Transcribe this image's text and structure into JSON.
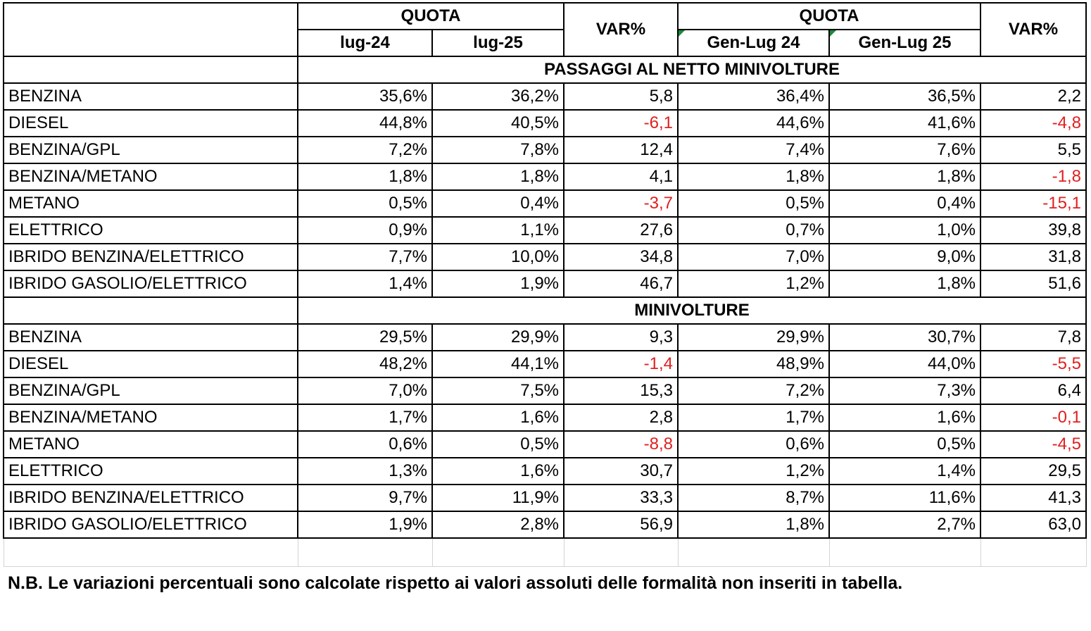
{
  "header": {
    "quota_left": "QUOTA",
    "quota_right": "QUOTA",
    "var_left": "VAR%",
    "var_right": "VAR%",
    "col_lug24": "lug-24",
    "col_lug25": "lug-25",
    "col_gen24": "Gen-Lug 24",
    "col_gen25": "Gen-Lug 25"
  },
  "sections": [
    {
      "title": "PASSAGGI AL NETTO MINIVOLTURE",
      "rows": [
        {
          "label": "BENZINA",
          "lug24": "35,6%",
          "lug25": "36,2%",
          "var": "5,8",
          "gen24": "36,4%",
          "gen25": "36,5%",
          "var_ytd": "2,2"
        },
        {
          "label": "DIESEL",
          "lug24": "44,8%",
          "lug25": "40,5%",
          "var": "-6,1",
          "gen24": "44,6%",
          "gen25": "41,6%",
          "var_ytd": "-4,8"
        },
        {
          "label": "BENZINA/GPL",
          "lug24": "7,2%",
          "lug25": "7,8%",
          "var": "12,4",
          "gen24": "7,4%",
          "gen25": "7,6%",
          "var_ytd": "5,5"
        },
        {
          "label": "BENZINA/METANO",
          "lug24": "1,8%",
          "lug25": "1,8%",
          "var": "4,1",
          "gen24": "1,8%",
          "gen25": "1,8%",
          "var_ytd": "-1,8"
        },
        {
          "label": "METANO",
          "lug24": "0,5%",
          "lug25": "0,4%",
          "var": "-3,7",
          "gen24": "0,5%",
          "gen25": "0,4%",
          "var_ytd": "-15,1"
        },
        {
          "label": "ELETTRICO",
          "lug24": "0,9%",
          "lug25": "1,1%",
          "var": "27,6",
          "gen24": "0,7%",
          "gen25": "1,0%",
          "var_ytd": "39,8"
        },
        {
          "label": "IBRIDO BENZINA/ELETTRICO",
          "lug24": "7,7%",
          "lug25": "10,0%",
          "var": "34,8",
          "gen24": "7,0%",
          "gen25": "9,0%",
          "var_ytd": "31,8"
        },
        {
          "label": "IBRIDO GASOLIO/ELETTRICO",
          "lug24": "1,4%",
          "lug25": "1,9%",
          "var": "46,7",
          "gen24": "1,2%",
          "gen25": "1,8%",
          "var_ytd": "51,6"
        }
      ]
    },
    {
      "title": "MINIVOLTURE",
      "rows": [
        {
          "label": "BENZINA",
          "lug24": "29,5%",
          "lug25": "29,9%",
          "var": "9,3",
          "gen24": "29,9%",
          "gen25": "30,7%",
          "var_ytd": "7,8"
        },
        {
          "label": "DIESEL",
          "lug24": "48,2%",
          "lug25": "44,1%",
          "var": "-1,4",
          "gen24": "48,9%",
          "gen25": "44,0%",
          "var_ytd": "-5,5"
        },
        {
          "label": "BENZINA/GPL",
          "lug24": "7,0%",
          "lug25": "7,5%",
          "var": "15,3",
          "gen24": "7,2%",
          "gen25": "7,3%",
          "var_ytd": "6,4"
        },
        {
          "label": "BENZINA/METANO",
          "lug24": "1,7%",
          "lug25": "1,6%",
          "var": "2,8",
          "gen24": "1,7%",
          "gen25": "1,6%",
          "var_ytd": "-0,1"
        },
        {
          "label": "METANO",
          "lug24": "0,6%",
          "lug25": "0,5%",
          "var": "-8,8",
          "gen24": "0,6%",
          "gen25": "0,5%",
          "var_ytd": "-4,5"
        },
        {
          "label": "ELETTRICO",
          "lug24": "1,3%",
          "lug25": "1,6%",
          "var": "30,7",
          "gen24": "1,2%",
          "gen25": "1,4%",
          "var_ytd": "29,5"
        },
        {
          "label": "IBRIDO BENZINA/ELETTRICO",
          "lug24": "9,7%",
          "lug25": "11,9%",
          "var": "33,3",
          "gen24": "8,7%",
          "gen25": "11,6%",
          "var_ytd": "41,3"
        },
        {
          "label": "IBRIDO GASOLIO/ELETTRICO",
          "lug24": "1,9%",
          "lug25": "2,8%",
          "var": "56,9",
          "gen24": "1,8%",
          "gen25": "2,7%",
          "var_ytd": "63,0"
        }
      ]
    }
  ],
  "colors": {
    "negative": "#e02020",
    "corner_marker": "#1e8a3c"
  },
  "note": "N.B. Le variazioni percentuali sono calcolate rispetto ai valori assoluti delle formalità non inseriti in tabella."
}
